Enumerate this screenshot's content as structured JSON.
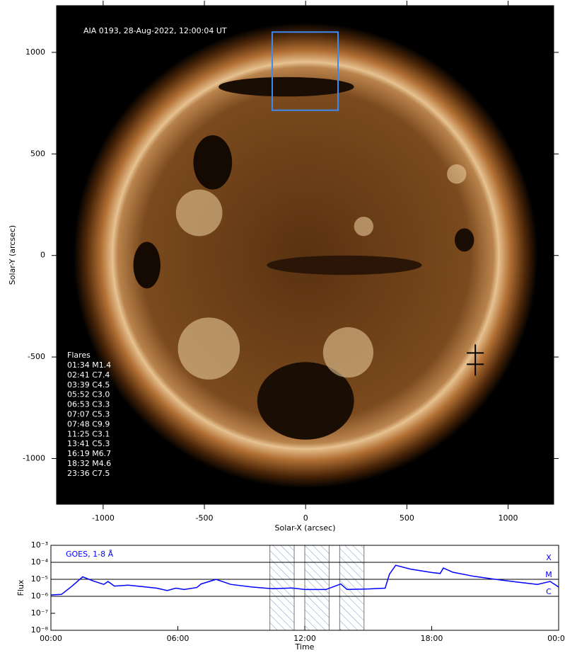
{
  "chart_data": [
    {
      "type": "image",
      "title": "AIA 0193, 28-Aug-2022, 12:00:04 UT",
      "xlabel": "Solar-X (arcsec)",
      "ylabel": "Solar-Y (arcsec)",
      "xlim": [
        -1230,
        1225
      ],
      "ylim": [
        -1225,
        1230
      ],
      "xticks": [
        -1000,
        -500,
        0,
        500,
        1000
      ],
      "yticks": [
        -1000,
        -500,
        0,
        500,
        1000
      ],
      "disk_radius": 956,
      "box": {
        "x": [
          -165,
          160
        ],
        "y": [
          715,
          1100
        ]
      },
      "marker": [
        838,
        -480
      ],
      "flares": {
        "title": "Flares",
        "items": [
          "01:34 M1.4",
          "02:41 C7.4",
          "03:39 C4.5",
          "05:52 C3.0",
          "06:53 C3.3",
          "07:07 C5.3",
          "07:48 C9.9",
          "11:25 C3.1",
          "13:41 C5.3",
          "16:19 M6.7",
          "18:32 M4.6",
          "23:36 C7.5"
        ]
      }
    },
    {
      "type": "line",
      "log_y": true,
      "xlabel": "Time",
      "ylabel": "Flux",
      "xlim": [
        0,
        24
      ],
      "ylim": [
        1e-08,
        0.001
      ],
      "xticks": [
        {
          "value": 0,
          "label": "00:00"
        },
        {
          "value": 6,
          "label": "06:00"
        },
        {
          "value": 12,
          "label": "12:00"
        },
        {
          "value": 18,
          "label": "18:00"
        },
        {
          "value": 24,
          "label": "00:00"
        }
      ],
      "yticks": [
        {
          "value": 1e-08,
          "label": "10⁻⁸"
        },
        {
          "value": 1e-07,
          "label": "10⁻⁷"
        },
        {
          "value": 1e-06,
          "label": "10⁻⁶"
        },
        {
          "value": 1e-05,
          "label": "10⁻⁵"
        },
        {
          "value": 0.0001,
          "label": "10⁻⁴"
        },
        {
          "value": 0.001,
          "label": "10⁻³"
        }
      ],
      "class_lines": [
        {
          "value": 0.0001,
          "label": "X"
        },
        {
          "value": 1e-05,
          "label": "M"
        },
        {
          "value": 1e-06,
          "label": "C"
        }
      ],
      "shaded": [
        [
          10.35,
          11.5
        ],
        [
          12.0,
          13.15
        ],
        [
          13.65,
          14.8
        ]
      ],
      "x": [
        0,
        0.5,
        1.0,
        1.5,
        2.0,
        2.5,
        2.7,
        3.0,
        3.65,
        4.5,
        5.0,
        5.5,
        5.9,
        6.3,
        6.9,
        7.1,
        7.8,
        8.5,
        9.5,
        10.5,
        11.4,
        12,
        13,
        13.7,
        14,
        15,
        15.8,
        16.0,
        16.3,
        17,
        18,
        18.4,
        18.55,
        19,
        20,
        21,
        22,
        23,
        23.6,
        24
      ],
      "series": [
        {
          "name": "GOES, 1-8 Å",
          "color": "#0000ff",
          "values": [
            1.2e-06,
            1.3e-06,
            4e-06,
            1.4e-05,
            8e-06,
            5e-06,
            7.4e-06,
            4e-06,
            4.5e-06,
            3.5e-06,
            3e-06,
            2.2e-06,
            3e-06,
            2.5e-06,
            3.3e-06,
            5.3e-06,
            9.9e-06,
            5e-06,
            3.5e-06,
            2.8e-06,
            3.1e-06,
            2.5e-06,
            2.5e-06,
            5.3e-06,
            2.5e-06,
            2.7e-06,
            3e-06,
            2e-05,
            6.7e-05,
            4e-05,
            2.5e-05,
            2.2e-05,
            4.6e-05,
            2.6e-05,
            1.5e-05,
            1e-05,
            7e-06,
            5e-06,
            7.5e-06,
            3.5e-06
          ]
        }
      ]
    }
  ]
}
